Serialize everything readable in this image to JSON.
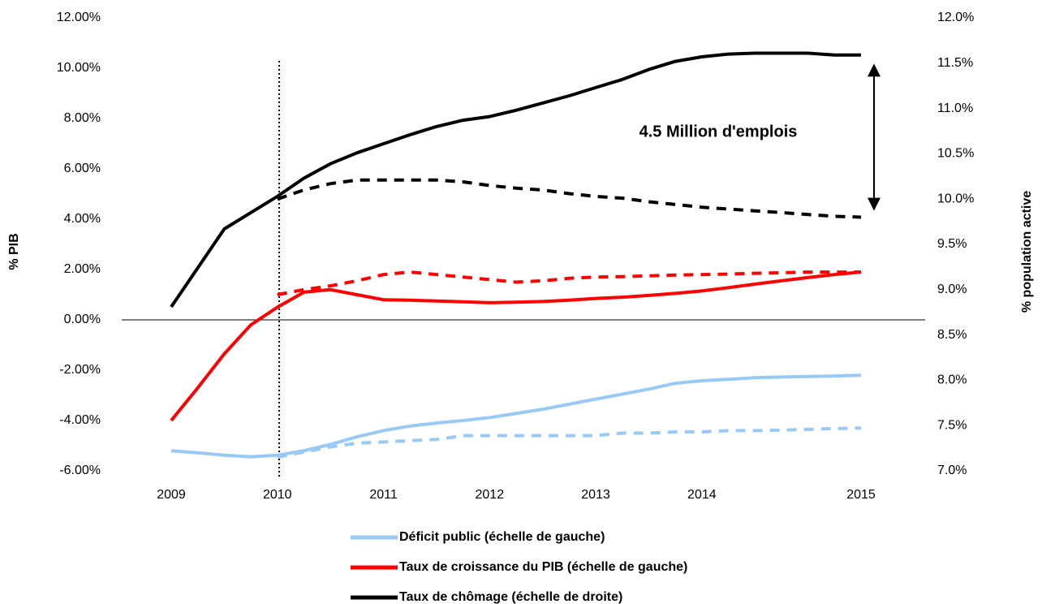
{
  "chart_data": {
    "type": "line",
    "annotation": "4.5 Million d'emplois",
    "ylabel": "% PIB",
    "y2label": "% population active",
    "categories": [
      "2009",
      null,
      null,
      null,
      "2010",
      null,
      null,
      null,
      "2011",
      null,
      null,
      null,
      "2012",
      null,
      null,
      null,
      "2013",
      null,
      null,
      null,
      "2014",
      null,
      null,
      null,
      null,
      null,
      "2015"
    ],
    "ylim": [
      -6,
      12
    ],
    "yticks": [
      {
        "value": -6,
        "label": "-6.00%"
      },
      {
        "value": -4,
        "label": "-4.00%"
      },
      {
        "value": -2,
        "label": "-2.00%"
      },
      {
        "value": 0,
        "label": "0.00%"
      },
      {
        "value": 2,
        "label": "2.00%"
      },
      {
        "value": 4,
        "label": "4.00%"
      },
      {
        "value": 6,
        "label": "6.00%"
      },
      {
        "value": 8,
        "label": "8.00%"
      },
      {
        "value": 10,
        "label": "10.00%"
      },
      {
        "value": 12,
        "label": "12.00%"
      }
    ],
    "y2lim": [
      7,
      12
    ],
    "y2ticks": [
      {
        "value": 7,
        "label": "7.0%"
      },
      {
        "value": 7.5,
        "label": "7.5%"
      },
      {
        "value": 8,
        "label": "8.0%"
      },
      {
        "value": 8.5,
        "label": "8.5%"
      },
      {
        "value": 9,
        "label": "9.0%"
      },
      {
        "value": 9.5,
        "label": "9.5%"
      },
      {
        "value": 10,
        "label": "10.0%"
      },
      {
        "value": 10.5,
        "label": "10.5%"
      },
      {
        "value": 11,
        "label": "11.0%"
      },
      {
        "value": 11.5,
        "label": "11.5%"
      },
      {
        "value": 12,
        "label": "12.0%"
      }
    ],
    "series": [
      {
        "name": "Déficit public (échelle de gauche)",
        "color": "#99c9f5",
        "values": [
          -5.2,
          -5.28,
          -5.38,
          -5.44,
          -5.38,
          -5.2,
          -4.95,
          -4.65,
          -4.4,
          -4.22,
          -4.1,
          -4.0,
          -3.88,
          -3.72,
          -3.55,
          -3.35,
          -3.15,
          -2.95,
          -2.75,
          -2.52,
          -2.42,
          -2.36,
          -2.3,
          -2.27,
          -2.25,
          -2.23,
          -2.2
        ]
      },
      {
        "name": "Taux de croissance du PIB (échelle de gauche)",
        "color": "#ff0000",
        "values": [
          -4.0,
          -2.7,
          -1.35,
          -0.2,
          0.5,
          1.1,
          1.2,
          1.0,
          0.8,
          0.78,
          0.75,
          0.72,
          0.68,
          0.7,
          0.73,
          0.78,
          0.85,
          0.9,
          0.97,
          1.05,
          1.15,
          1.28,
          1.42,
          1.55,
          1.68,
          1.8,
          1.9
        ]
      },
      {
        "name": "Taux de chômage (échelle de droite)",
        "color": "#000000",
        "axis": "y2",
        "values": [
          8.81,
          9.24,
          9.67,
          9.85,
          10.03,
          10.23,
          10.39,
          10.51,
          10.61,
          10.71,
          10.8,
          10.87,
          10.91,
          10.98,
          11.06,
          11.14,
          11.23,
          11.32,
          11.43,
          11.52,
          11.57,
          11.6,
          11.61,
          11.61,
          11.61,
          11.59,
          11.59
        ]
      },
      {
        "color": "#99c9f5",
        "dashed": true,
        "values": [
          null,
          null,
          null,
          null,
          -5.45,
          -5.25,
          -5.05,
          -4.9,
          -4.85,
          -4.8,
          -4.75,
          -4.6,
          -4.6,
          -4.6,
          -4.6,
          -4.6,
          -4.6,
          -4.5,
          -4.5,
          -4.45,
          -4.45,
          -4.4,
          -4.4,
          -4.38,
          -4.35,
          -4.32,
          -4.3
        ]
      },
      {
        "color": "#ff0000",
        "dashed": true,
        "values": [
          null,
          null,
          null,
          null,
          1.0,
          1.2,
          1.35,
          1.55,
          1.8,
          1.9,
          1.8,
          1.7,
          1.6,
          1.5,
          1.55,
          1.65,
          1.7,
          1.72,
          1.75,
          1.78,
          1.8,
          1.82,
          1.85,
          1.87,
          1.9,
          1.9,
          1.9
        ]
      },
      {
        "color": "#000000",
        "dashed": true,
        "axis": "y2",
        "values": [
          null,
          null,
          null,
          null,
          10.0,
          10.1,
          10.17,
          10.21,
          10.21,
          10.21,
          10.21,
          10.19,
          10.15,
          10.12,
          10.1,
          10.06,
          10.03,
          10.01,
          9.97,
          9.94,
          9.91,
          9.89,
          9.87,
          9.85,
          9.83,
          9.81,
          9.8
        ]
      }
    ]
  }
}
